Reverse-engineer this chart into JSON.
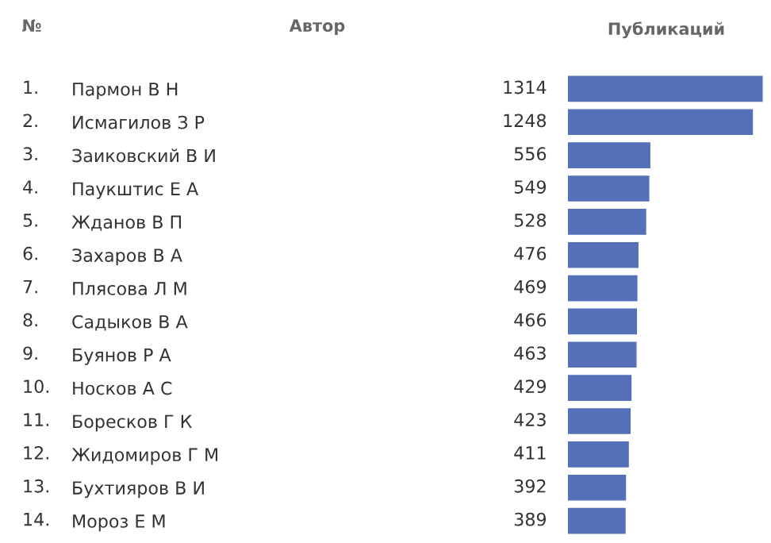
{
  "chart_data": {
    "type": "bar",
    "orientation": "horizontal",
    "xlabel": "Публикаций",
    "tick_labels": "y",
    "data_labels": true,
    "color": "#5470b8",
    "categories": [
      "Пармон В Н",
      "Исмагилов З Р",
      "Заиковский В И",
      "Паукштис Е А",
      "Жданов В П",
      "Захаров В А",
      "Плясова Л М",
      "Садыков В А",
      "Буянов Р А",
      "Носков А С",
      "Боресков Г К",
      "Жидомиров Г М",
      "Бухтияров В И",
      "Мороз Е М"
    ],
    "values": [
      1314,
      1248,
      556,
      549,
      528,
      476,
      469,
      466,
      463,
      429,
      423,
      411,
      392,
      389
    ],
    "annotations": [
      "№",
      "Автор",
      "1.",
      "2.",
      "3.",
      "4.",
      "5.",
      "6.",
      "7.",
      "8.",
      "9.",
      "10.",
      "11.",
      "12.",
      "13.",
      "14."
    ]
  }
}
